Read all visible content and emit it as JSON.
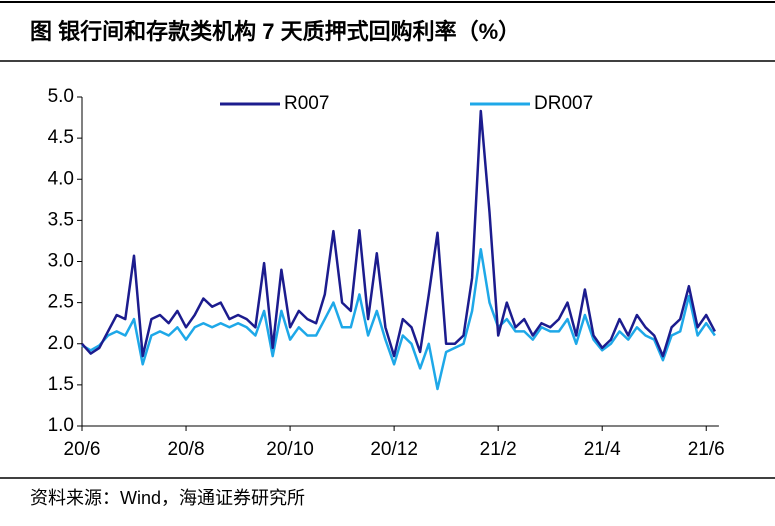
{
  "chart_data": {
    "type": "line",
    "title": "图  银行间和存款类机构 7 天质押式回购利率（%）",
    "source": "资料来源：Wind，海通证券研究所",
    "categories": [
      "20/6",
      null,
      null,
      null,
      null,
      null,
      null,
      null,
      null,
      null,
      null,
      null,
      "20/8",
      null,
      null,
      null,
      null,
      null,
      null,
      null,
      null,
      null,
      null,
      null,
      "20/10",
      null,
      null,
      null,
      null,
      null,
      null,
      null,
      null,
      null,
      null,
      null,
      "20/12",
      null,
      null,
      null,
      null,
      null,
      null,
      null,
      null,
      null,
      null,
      null,
      "21/2",
      null,
      null,
      null,
      null,
      null,
      null,
      null,
      null,
      null,
      null,
      null,
      "21/4",
      null,
      null,
      null,
      null,
      null,
      null,
      null,
      null,
      null,
      null,
      null,
      "21/6",
      null
    ],
    "series": [
      {
        "name": "R007",
        "color": "#1c1c8e",
        "values": [
          2.0,
          1.88,
          1.95,
          2.15,
          2.35,
          2.3,
          3.07,
          1.85,
          2.3,
          2.35,
          2.25,
          2.4,
          2.2,
          2.35,
          2.55,
          2.45,
          2.5,
          2.3,
          2.35,
          2.3,
          2.2,
          2.98,
          1.95,
          2.9,
          2.2,
          2.4,
          2.3,
          2.25,
          2.6,
          3.37,
          2.5,
          2.4,
          3.38,
          2.3,
          3.1,
          2.2,
          1.85,
          2.3,
          2.2,
          1.9,
          2.6,
          3.35,
          2.0,
          2.0,
          2.1,
          2.8,
          4.83,
          3.6,
          2.1,
          2.5,
          2.2,
          2.3,
          2.1,
          2.25,
          2.2,
          2.3,
          2.5,
          2.1,
          2.66,
          2.1,
          1.95,
          2.05,
          2.3,
          2.1,
          2.35,
          2.2,
          2.1,
          1.85,
          2.2,
          2.3,
          2.7,
          2.2,
          2.35,
          2.15
        ]
      },
      {
        "name": "DR007",
        "color": "#1ea8e8",
        "values": [
          1.98,
          1.92,
          1.98,
          2.1,
          2.15,
          2.1,
          2.3,
          1.75,
          2.1,
          2.15,
          2.1,
          2.2,
          2.05,
          2.2,
          2.25,
          2.2,
          2.25,
          2.2,
          2.25,
          2.2,
          2.1,
          2.4,
          1.85,
          2.4,
          2.05,
          2.2,
          2.1,
          2.1,
          2.3,
          2.5,
          2.2,
          2.2,
          2.6,
          2.1,
          2.4,
          2.05,
          1.75,
          2.1,
          2.0,
          1.7,
          2.0,
          1.45,
          1.9,
          1.95,
          2.0,
          2.4,
          3.15,
          2.5,
          2.2,
          2.3,
          2.15,
          2.15,
          2.05,
          2.2,
          2.15,
          2.15,
          2.3,
          2.0,
          2.35,
          2.05,
          1.92,
          2.0,
          2.15,
          2.05,
          2.2,
          2.1,
          2.05,
          1.8,
          2.1,
          2.15,
          2.58,
          2.1,
          2.25,
          2.1
        ]
      }
    ],
    "ylim": [
      1,
      5
    ],
    "yticks": [
      {
        "value": 1,
        "label": "1.0"
      },
      {
        "value": 1.5,
        "label": "1.5"
      },
      {
        "value": 2,
        "label": "2.0"
      },
      {
        "value": 2.5,
        "label": "2.5"
      },
      {
        "value": 3,
        "label": "3.0"
      },
      {
        "value": 3.5,
        "label": "3.5"
      },
      {
        "value": 4,
        "label": "4.0"
      },
      {
        "value": 4.5,
        "label": "4.5"
      },
      {
        "value": 5,
        "label": "5.0"
      }
    ],
    "legend": "top"
  }
}
